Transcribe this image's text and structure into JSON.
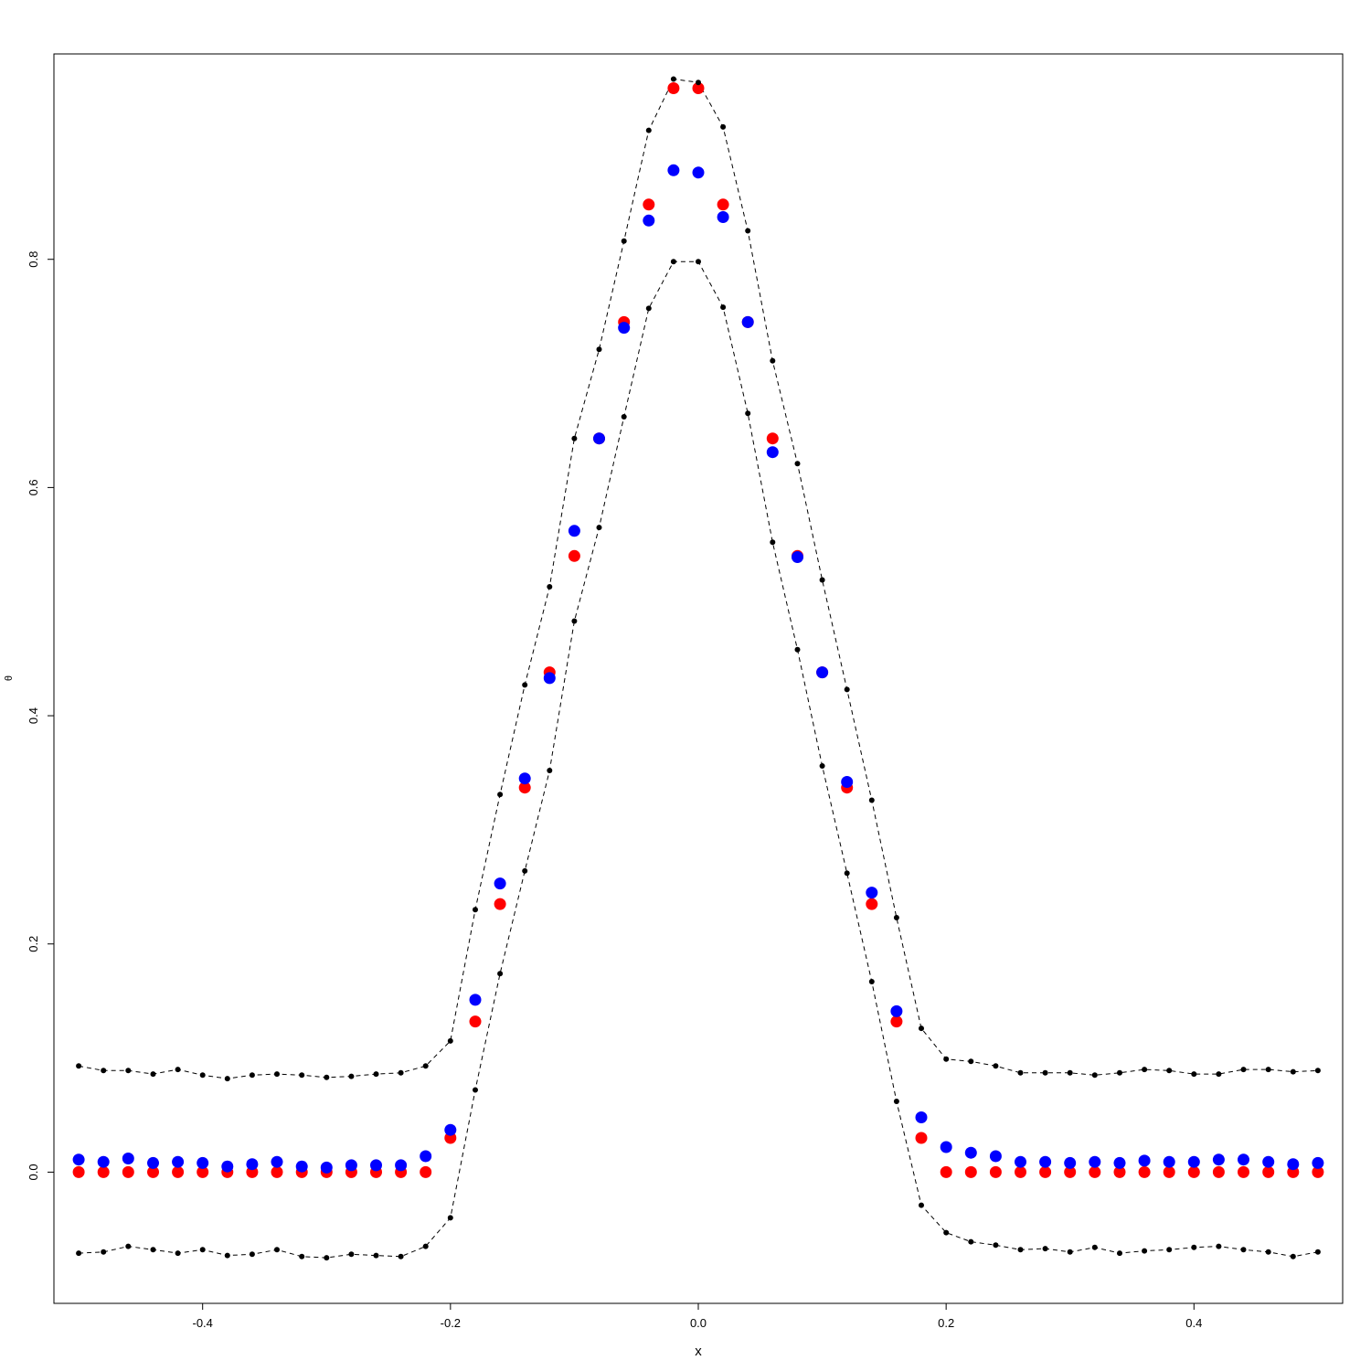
{
  "chart_data": {
    "type": "scatter",
    "xlabel": "x",
    "ylabel": "θ",
    "xlim": [
      -0.52,
      0.52
    ],
    "ylim": [
      -0.115,
      0.98
    ],
    "x_ticks": [
      -0.4,
      -0.2,
      0.0,
      0.2,
      0.4
    ],
    "x_tick_labels": [
      "-0.4",
      "-0.2",
      "0.0",
      "0.2",
      "0.4"
    ],
    "y_ticks": [
      0.0,
      0.2,
      0.4,
      0.6,
      0.8
    ],
    "y_tick_labels": [
      "0.0",
      "0.2",
      "0.4",
      "0.6",
      "0.8"
    ],
    "grid": false,
    "legend": "none",
    "x": [
      -0.5,
      -0.48,
      -0.46,
      -0.44,
      -0.42,
      -0.4,
      -0.38,
      -0.36,
      -0.34,
      -0.32,
      -0.3,
      -0.28,
      -0.26,
      -0.24,
      -0.22,
      -0.2,
      -0.18,
      -0.16,
      -0.14,
      -0.12,
      -0.1,
      -0.08,
      -0.06,
      -0.04,
      -0.02,
      0.0,
      0.02,
      0.04,
      0.06,
      0.08,
      0.1,
      0.12,
      0.14,
      0.16,
      0.18,
      0.2,
      0.22,
      0.24,
      0.26,
      0.28,
      0.3,
      0.32,
      0.34,
      0.36,
      0.38,
      0.4,
      0.42,
      0.44,
      0.46,
      0.48,
      0.5
    ],
    "series": [
      {
        "color": "#ff0000",
        "marker": "filled-circle-large",
        "values": [
          0,
          0,
          0,
          0,
          0,
          0,
          0,
          0,
          0,
          0,
          0,
          0,
          0,
          0,
          0,
          0.03,
          0.132,
          0.235,
          0.337,
          0.438,
          0.54,
          0.643,
          0.745,
          0.848,
          0.95,
          0.95,
          0.848,
          0.745,
          0.643,
          0.54,
          0.438,
          0.337,
          0.235,
          0.132,
          0.03,
          0,
          0,
          0,
          0,
          0,
          0,
          0,
          0,
          0,
          0,
          0,
          0,
          0,
          0,
          0,
          0
        ]
      },
      {
        "color": "#0000ff",
        "marker": "filled-circle-large",
        "values": [
          0.011,
          0.009,
          0.012,
          0.008,
          0.009,
          0.008,
          0.005,
          0.007,
          0.009,
          0.005,
          0.004,
          0.006,
          0.006,
          0.006,
          0.014,
          0.037,
          0.151,
          0.253,
          0.345,
          0.433,
          0.562,
          0.643,
          0.74,
          0.834,
          0.878,
          0.876,
          0.837,
          0.745,
          0.631,
          0.539,
          0.438,
          0.342,
          0.245,
          0.141,
          0.048,
          0.022,
          0.017,
          0.014,
          0.009,
          0.009,
          0.008,
          0.009,
          0.008,
          0.01,
          0.009,
          0.009,
          0.011,
          0.011,
          0.009,
          0.007,
          0.008
        ]
      },
      {
        "color": "#000000",
        "marker": "small-dot",
        "line": "dashed",
        "values": [
          0.093,
          0.089,
          0.089,
          0.086,
          0.09,
          0.085,
          0.082,
          0.085,
          0.086,
          0.085,
          0.083,
          0.084,
          0.086,
          0.087,
          0.093,
          0.115,
          0.23,
          0.331,
          0.427,
          0.513,
          0.643,
          0.721,
          0.816,
          0.913,
          0.958,
          0.955,
          0.916,
          0.825,
          0.711,
          0.621,
          0.519,
          0.423,
          0.326,
          0.223,
          0.126,
          0.099,
          0.097,
          0.093,
          0.087,
          0.087,
          0.087,
          0.085,
          0.087,
          0.09,
          0.089,
          0.086,
          0.086,
          0.09,
          0.09,
          0.088,
          0.089
        ]
      },
      {
        "color": "#000000",
        "marker": "small-dot",
        "line": "dashed",
        "values": [
          -0.071,
          -0.07,
          -0.065,
          -0.068,
          -0.071,
          -0.068,
          -0.073,
          -0.072,
          -0.068,
          -0.074,
          -0.075,
          -0.072,
          -0.073,
          -0.074,
          -0.065,
          -0.04,
          0.072,
          0.174,
          0.264,
          0.352,
          0.483,
          0.565,
          0.662,
          0.757,
          0.798,
          0.798,
          0.758,
          0.665,
          0.552,
          0.458,
          0.356,
          0.262,
          0.167,
          0.062,
          -0.029,
          -0.053,
          -0.061,
          -0.064,
          -0.068,
          -0.067,
          -0.07,
          -0.066,
          -0.071,
          -0.069,
          -0.068,
          -0.066,
          -0.065,
          -0.068,
          -0.07,
          -0.074,
          -0.07
        ]
      }
    ]
  }
}
